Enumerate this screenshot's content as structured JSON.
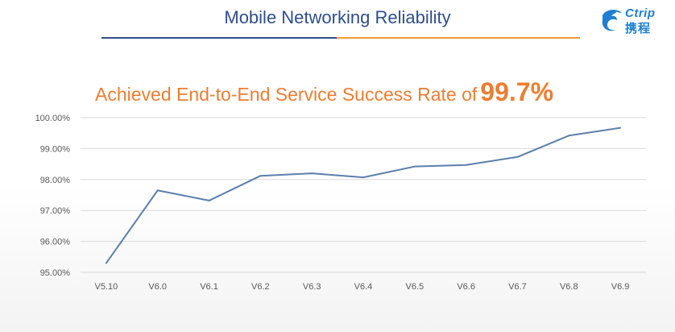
{
  "header": {
    "title": "Mobile Networking Reliability",
    "logo": {
      "text": "Ctrip",
      "cn_text": "携程",
      "icon": "ctrip-dolphin-logo"
    }
  },
  "subtitle": {
    "lead": "Achieved End-to-End Service Success Rate of",
    "highlight": "99.7%"
  },
  "colors": {
    "title": "#2f4e8c",
    "accent": "#ed7d31",
    "line": "#5b7fad",
    "rule_left": "#2f4e8c",
    "rule_right": "#f29b3a"
  },
  "chart_data": {
    "type": "line",
    "title": "",
    "xlabel": "",
    "ylabel": "",
    "categories": [
      "V5.10",
      "V6.0",
      "V6.1",
      "V6.2",
      "V6.3",
      "V6.4",
      "V6.5",
      "V6.6",
      "V6.7",
      "V6.8",
      "V6.9"
    ],
    "series": [
      {
        "values": [
          95.3,
          97.65,
          97.32,
          98.12,
          98.2,
          98.07,
          98.42,
          98.47,
          98.73,
          99.42,
          99.67
        ]
      }
    ],
    "ylim": [
      95,
      100
    ],
    "yticks": [
      95,
      96,
      97,
      98,
      99,
      100
    ],
    "ytick_labels": [
      "95.00%",
      "96.00%",
      "97.00%",
      "98.00%",
      "99.00%",
      "100.00%"
    ],
    "grid": true,
    "legend": "none"
  }
}
